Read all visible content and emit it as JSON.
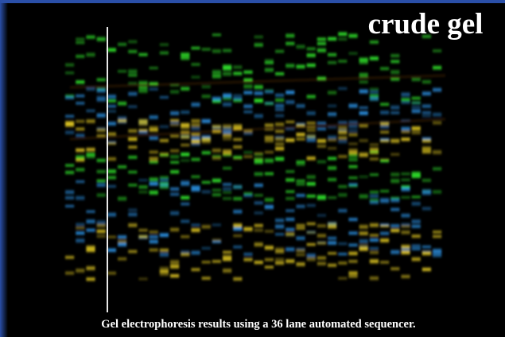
{
  "header": {
    "title": "crude gel"
  },
  "caption": "Gel electrophoresis results using a 36 lane automated sequencer."
}
